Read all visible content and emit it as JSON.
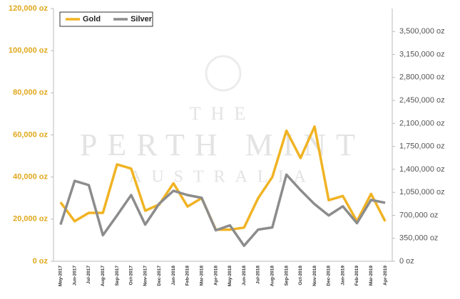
{
  "chart_data": {
    "type": "line",
    "watermark": {
      "line1": "THE",
      "line2": "PERTH MINT",
      "line3": "AUSTRALIA"
    },
    "categories": [
      "May-2017",
      "Jun-2017",
      "Jul-2017",
      "Aug-2017",
      "Sep-2017",
      "Oct-2017",
      "Nov-2017",
      "Dec-2017",
      "Jan-2018",
      "Feb-2018",
      "Mar-2018",
      "Apr-2018",
      "May-2018",
      "Jun-2018",
      "Jul-2018",
      "Aug-2018",
      "Sep-2018",
      "Oct-2018",
      "Nov-2018",
      "Dec-2018",
      "Jan-2019",
      "Feb-2019",
      "Mar-2019",
      "Apr-2019"
    ],
    "series": [
      {
        "name": "Gold",
        "color": "#f0b323",
        "axis": "y",
        "values": [
          28000,
          19000,
          23000,
          23000,
          46000,
          44000,
          24000,
          27000,
          37000,
          26000,
          30000,
          15000,
          15000,
          16000,
          30000,
          40000,
          62000,
          49000,
          64000,
          29000,
          31000,
          19000,
          32000,
          19000
        ]
      },
      {
        "name": "Silver",
        "color": "#8c8c8c",
        "axis": "y2",
        "values": [
          558000,
          1224000,
          1160000,
          397000,
          698000,
          1009000,
          558000,
          880000,
          1074000,
          1009000,
          966000,
          472000,
          548000,
          236000,
          483000,
          515000,
          1320000,
          1084000,
          870000,
          698000,
          837000,
          580000,
          934000,
          891000
        ]
      }
    ],
    "ylim": [
      0,
      120000
    ],
    "yticks": [
      {
        "value": 0,
        "label": "0 oz"
      },
      {
        "value": 20000,
        "label": "20,000 oz"
      },
      {
        "value": 40000,
        "label": "40,000 oz"
      },
      {
        "value": 60000,
        "label": "60,000 oz"
      },
      {
        "value": 80000,
        "label": "80,000 oz"
      },
      {
        "value": 100000,
        "label": "100,000 oz"
      },
      {
        "value": 120000,
        "label": "120,000 oz"
      }
    ],
    "y2lim": [
      0,
      3850000
    ],
    "y2ticks": [
      {
        "value": 0,
        "label": "0 oz"
      },
      {
        "value": 350000,
        "label": "350,000 oz"
      },
      {
        "value": 700000,
        "label": "700,000 oz"
      },
      {
        "value": 1050000,
        "label": "1,050,000 oz"
      },
      {
        "value": 1400000,
        "label": "1,400,000 oz"
      },
      {
        "value": 1750000,
        "label": "1,750,000 oz"
      },
      {
        "value": 2100000,
        "label": "2,100,000 oz"
      },
      {
        "value": 2450000,
        "label": "2,450,000 oz"
      },
      {
        "value": 2800000,
        "label": "2,800,000 oz"
      },
      {
        "value": 3150000,
        "label": "3,150,000 oz"
      },
      {
        "value": 3500000,
        "label": "3,500,000 oz"
      }
    ],
    "yticks_color": "#e0a81c",
    "legend": "upper left"
  }
}
